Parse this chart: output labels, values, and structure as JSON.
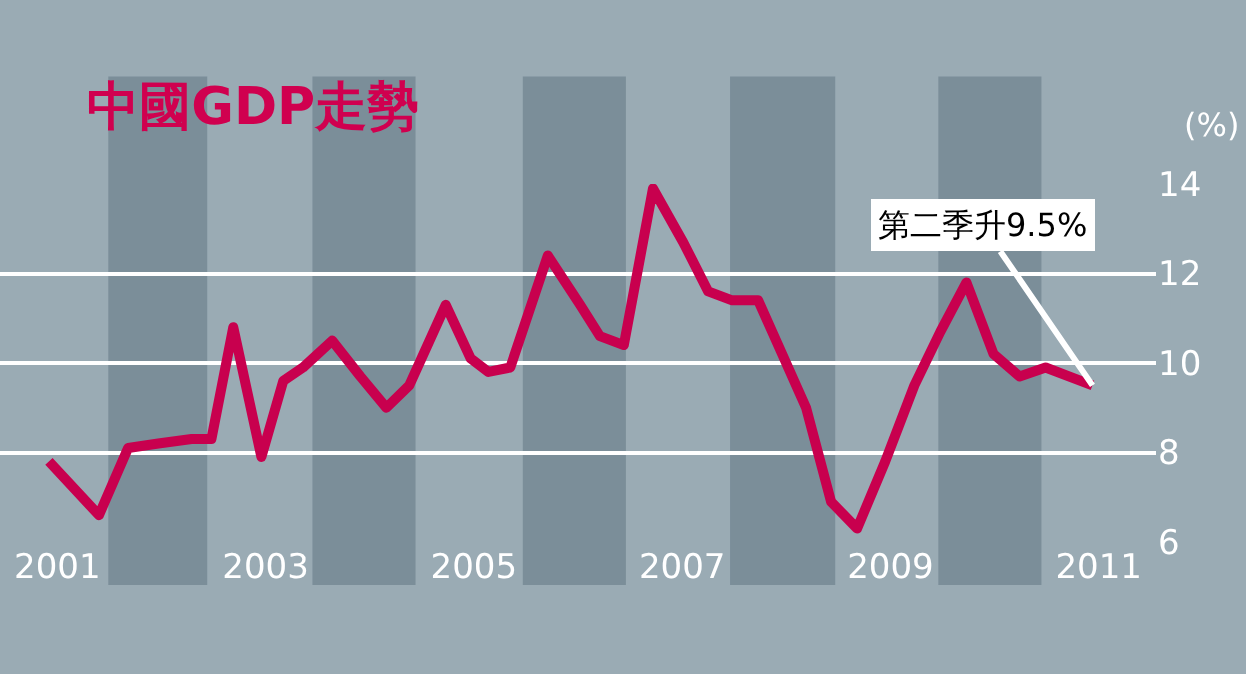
{
  "chart_data": {
    "type": "line",
    "title": "中國GDP走勢",
    "ylabel": "(%)",
    "x": [
      2000.92,
      2001.4,
      2001.68,
      2001.97,
      2002.29,
      2002.48,
      2002.69,
      2002.96,
      2003.17,
      2003.36,
      2003.64,
      2003.91,
      2004.16,
      2004.38,
      2004.73,
      2004.97,
      2005.14,
      2005.35,
      2005.71,
      2006.02,
      2006.21,
      2006.44,
      2006.72,
      2007.01,
      2007.25,
      2007.48,
      2007.73,
      2007.96,
      2008.19,
      2008.43,
      2008.68,
      2008.95,
      2009.23,
      2009.48,
      2009.73,
      2009.99,
      2010.24,
      2010.49,
      2010.94
    ],
    "series": [
      {
        "color": "#c8004e",
        "values": [
          7.8,
          6.6,
          8.1,
          8.2,
          8.3,
          8.3,
          10.8,
          7.9,
          9.6,
          9.9,
          10.5,
          9.7,
          9.0,
          9.5,
          11.3,
          10.1,
          9.8,
          9.9,
          12.4,
          11.3,
          10.6,
          10.4,
          13.9,
          12.7,
          11.6,
          11.4,
          11.4,
          10.2,
          9.0,
          6.9,
          6.3,
          7.8,
          9.5,
          10.7,
          11.8,
          10.2,
          9.7,
          9.9,
          9.5
        ]
      }
    ],
    "xlim": [
      2000.45,
      2011.55
    ],
    "ylim": [
      6,
      14
    ],
    "xticks": [
      2001,
      2003,
      2005,
      2007,
      2009,
      2011
    ],
    "yticks": [
      6,
      8,
      10,
      12,
      14
    ],
    "grid": "y",
    "marker": "none",
    "line_style": "solid",
    "bands": [
      {
        "axis": "x",
        "from": 2001.49,
        "to": 2002.44,
        "color": "#7b8e99"
      },
      {
        "axis": "x",
        "from": 2003.45,
        "to": 2004.44,
        "color": "#7b8e99"
      },
      {
        "axis": "x",
        "from": 2005.47,
        "to": 2006.46,
        "color": "#7b8e99"
      },
      {
        "axis": "x",
        "from": 2007.46,
        "to": 2008.47,
        "color": "#7b8e99"
      },
      {
        "axis": "x",
        "from": 2009.46,
        "to": 2010.45,
        "color": "#7b8e99"
      }
    ],
    "annotations": [
      {
        "text": "第二季升9.5%",
        "x": 2010.94,
        "y": 9.5
      }
    ]
  }
}
